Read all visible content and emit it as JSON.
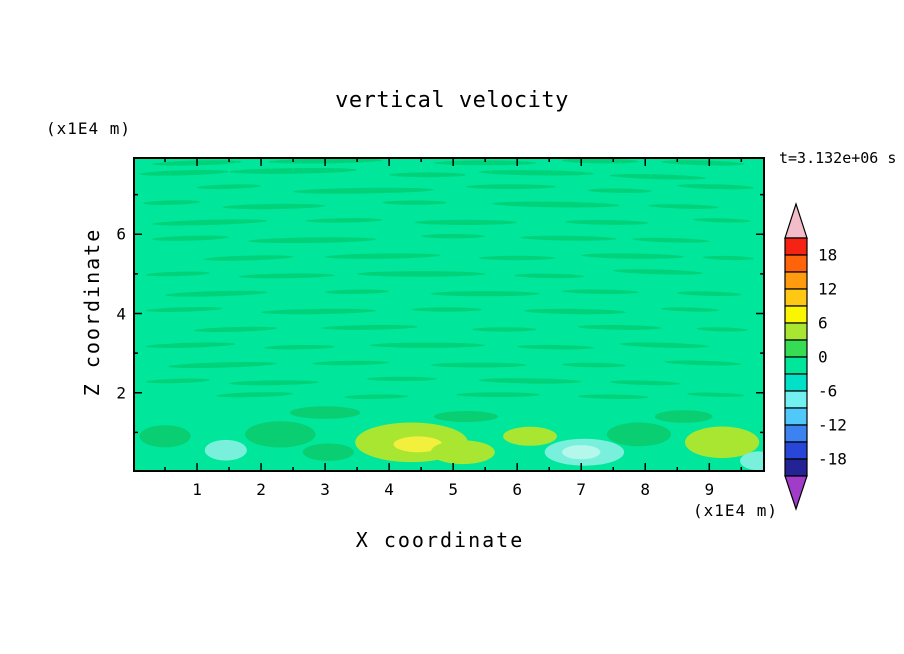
{
  "page": {
    "background": "#FFFFFF"
  },
  "chart_data": {
    "type": "contour",
    "title": "vertical velocity",
    "time_label": "t=3.132e+06 s",
    "xlabel": "X coordinate",
    "ylabel": "Z coordinate",
    "x_unit_label": "(x1E4 m)",
    "y_unit_label": "(x1E4 m)",
    "xlim": [
      0,
      9.87
    ],
    "ylim": [
      0,
      7.95
    ],
    "x_ticks": [
      1,
      2,
      3,
      4,
      5,
      6,
      7,
      8,
      9
    ],
    "x_minor_ticks": [
      0.5,
      1.5,
      2.5,
      3.5,
      4.5,
      5.5,
      6.5,
      7.5,
      8.5,
      9.5
    ],
    "y_ticks": [
      2,
      4,
      6
    ],
    "y_minor_ticks": [
      1,
      3,
      5,
      7
    ],
    "contour_levels": [
      -21,
      -18,
      -15,
      -12,
      -9,
      -6,
      -3,
      0,
      3,
      6,
      9,
      12,
      15,
      18,
      21
    ],
    "colorbar": {
      "labels": [
        "18",
        "12",
        "6",
        "0",
        "-6",
        "-12",
        "-18"
      ],
      "labeled_levels": [
        18,
        12,
        6,
        0,
        -6,
        -12,
        -18
      ],
      "segment_colors_top_to_bottom": [
        "#F52314",
        "#FF640A",
        "#FF9B0F",
        "#FFC814",
        "#FAF500",
        "#A9E632",
        "#37DC55",
        "#00E69B",
        "#00E1C8",
        "#73F0F0",
        "#50C8FA",
        "#3C82F0",
        "#2846D7",
        "#232396"
      ],
      "top_arrow_color": "#F2BCC8",
      "bottom_arrow_color": "#A03CC8"
    },
    "field": {
      "background_color": "#00E69B",
      "streak_color": "#00D27A",
      "blob_colors": {
        "ygreen": "#A9E632",
        "yellow": "#F2F03C",
        "green2": "#0ACF72",
        "cyan": "#78F0DC",
        "palecyan": "#B4F7EB"
      },
      "streaks": [
        [
          1.0,
          7.8,
          1.4,
          0.12
        ],
        [
          3.0,
          7.85,
          1.8,
          0.12
        ],
        [
          5.5,
          7.8,
          1.6,
          0.12
        ],
        [
          7.3,
          7.85,
          1.2,
          0.12
        ],
        [
          8.9,
          7.8,
          1.3,
          0.12
        ],
        [
          0.8,
          7.55,
          1.4,
          0.13
        ],
        [
          2.5,
          7.6,
          2.0,
          0.14
        ],
        [
          4.6,
          7.5,
          1.2,
          0.12
        ],
        [
          6.3,
          7.55,
          1.8,
          0.13
        ],
        [
          8.2,
          7.45,
          1.5,
          0.12
        ],
        [
          1.5,
          7.2,
          1.0,
          0.11
        ],
        [
          3.6,
          7.1,
          2.2,
          0.14
        ],
        [
          5.9,
          7.2,
          1.4,
          0.12
        ],
        [
          7.6,
          7.1,
          1.0,
          0.11
        ],
        [
          9.1,
          7.2,
          1.2,
          0.12
        ],
        [
          0.6,
          6.8,
          0.9,
          0.11
        ],
        [
          2.2,
          6.7,
          1.6,
          0.13
        ],
        [
          4.4,
          6.8,
          1.0,
          0.11
        ],
        [
          6.6,
          6.75,
          2.0,
          0.14
        ],
        [
          8.6,
          6.7,
          1.1,
          0.11
        ],
        [
          1.2,
          6.3,
          1.8,
          0.13
        ],
        [
          3.3,
          6.35,
          1.2,
          0.11
        ],
        [
          5.2,
          6.3,
          1.6,
          0.13
        ],
        [
          7.4,
          6.3,
          1.3,
          0.12
        ],
        [
          9.2,
          6.35,
          0.9,
          0.1
        ],
        [
          0.9,
          5.9,
          1.2,
          0.12
        ],
        [
          2.8,
          5.85,
          2.0,
          0.14
        ],
        [
          5.0,
          5.95,
          1.0,
          0.11
        ],
        [
          6.8,
          5.9,
          1.5,
          0.12
        ],
        [
          8.4,
          5.85,
          1.2,
          0.11
        ],
        [
          1.8,
          5.4,
          1.4,
          0.12
        ],
        [
          3.9,
          5.45,
          1.8,
          0.13
        ],
        [
          6.0,
          5.4,
          1.2,
          0.11
        ],
        [
          7.8,
          5.45,
          1.6,
          0.13
        ],
        [
          9.3,
          5.4,
          0.8,
          0.1
        ],
        [
          0.7,
          5.0,
          1.0,
          0.11
        ],
        [
          2.4,
          4.95,
          1.5,
          0.12
        ],
        [
          4.5,
          5.0,
          2.0,
          0.14
        ],
        [
          6.5,
          4.95,
          1.1,
          0.11
        ],
        [
          8.2,
          5.05,
          1.4,
          0.12
        ],
        [
          1.3,
          4.5,
          1.6,
          0.13
        ],
        [
          3.5,
          4.55,
          1.0,
          0.11
        ],
        [
          5.5,
          4.5,
          1.7,
          0.13
        ],
        [
          7.3,
          4.55,
          1.2,
          0.11
        ],
        [
          9.0,
          4.5,
          1.0,
          0.11
        ],
        [
          0.8,
          4.1,
          1.2,
          0.11
        ],
        [
          2.9,
          4.05,
          1.8,
          0.13
        ],
        [
          4.9,
          4.1,
          1.1,
          0.11
        ],
        [
          6.9,
          4.05,
          1.6,
          0.13
        ],
        [
          8.7,
          4.1,
          0.9,
          0.1
        ],
        [
          1.6,
          3.6,
          1.3,
          0.12
        ],
        [
          3.7,
          3.65,
          1.5,
          0.12
        ],
        [
          5.8,
          3.6,
          1.0,
          0.11
        ],
        [
          7.6,
          3.65,
          1.3,
          0.12
        ],
        [
          9.2,
          3.6,
          0.8,
          0.1
        ],
        [
          0.9,
          3.2,
          1.4,
          0.12
        ],
        [
          2.6,
          3.15,
          1.1,
          0.11
        ],
        [
          4.6,
          3.2,
          1.8,
          0.13
        ],
        [
          6.6,
          3.15,
          1.2,
          0.11
        ],
        [
          8.3,
          3.2,
          1.4,
          0.12
        ],
        [
          1.4,
          2.7,
          1.7,
          0.13
        ],
        [
          3.4,
          2.75,
          1.2,
          0.11
        ],
        [
          5.4,
          2.7,
          1.5,
          0.12
        ],
        [
          7.2,
          2.7,
          1.0,
          0.11
        ],
        [
          8.9,
          2.75,
          1.2,
          0.11
        ],
        [
          0.7,
          2.3,
          1.0,
          0.11
        ],
        [
          2.2,
          2.25,
          1.4,
          0.12
        ],
        [
          4.2,
          2.35,
          1.1,
          0.11
        ],
        [
          6.2,
          2.3,
          1.6,
          0.13
        ],
        [
          8.0,
          2.25,
          1.1,
          0.11
        ],
        [
          1.9,
          1.95,
          1.2,
          0.12
        ],
        [
          3.8,
          1.9,
          1.0,
          0.11
        ],
        [
          5.7,
          1.95,
          1.3,
          0.12
        ],
        [
          7.5,
          1.9,
          1.1,
          0.11
        ],
        [
          9.1,
          1.95,
          0.9,
          0.1
        ]
      ],
      "blobs": [
        [
          0.5,
          0.9,
          0.4,
          0.28,
          "green2"
        ],
        [
          1.45,
          0.55,
          0.33,
          0.26,
          "cyan"
        ],
        [
          2.3,
          0.95,
          0.55,
          0.33,
          "green2"
        ],
        [
          3.05,
          0.5,
          0.4,
          0.22,
          "green2"
        ],
        [
          3.0,
          1.5,
          0.55,
          0.16,
          "green2"
        ],
        [
          4.35,
          0.75,
          0.88,
          0.5,
          "ygreen"
        ],
        [
          4.45,
          0.7,
          0.38,
          0.2,
          "yellow"
        ],
        [
          5.15,
          0.5,
          0.5,
          0.3,
          "ygreen"
        ],
        [
          5.2,
          1.4,
          0.5,
          0.14,
          "green2"
        ],
        [
          6.2,
          0.9,
          0.42,
          0.24,
          "ygreen"
        ],
        [
          7.05,
          0.5,
          0.62,
          0.34,
          "cyan"
        ],
        [
          7.0,
          0.5,
          0.3,
          0.18,
          "palecyan"
        ],
        [
          7.9,
          0.95,
          0.5,
          0.3,
          "green2"
        ],
        [
          8.6,
          1.4,
          0.45,
          0.16,
          "green2"
        ],
        [
          9.2,
          0.75,
          0.58,
          0.4,
          "ygreen"
        ],
        [
          9.78,
          0.28,
          0.3,
          0.24,
          "cyan"
        ]
      ]
    }
  }
}
